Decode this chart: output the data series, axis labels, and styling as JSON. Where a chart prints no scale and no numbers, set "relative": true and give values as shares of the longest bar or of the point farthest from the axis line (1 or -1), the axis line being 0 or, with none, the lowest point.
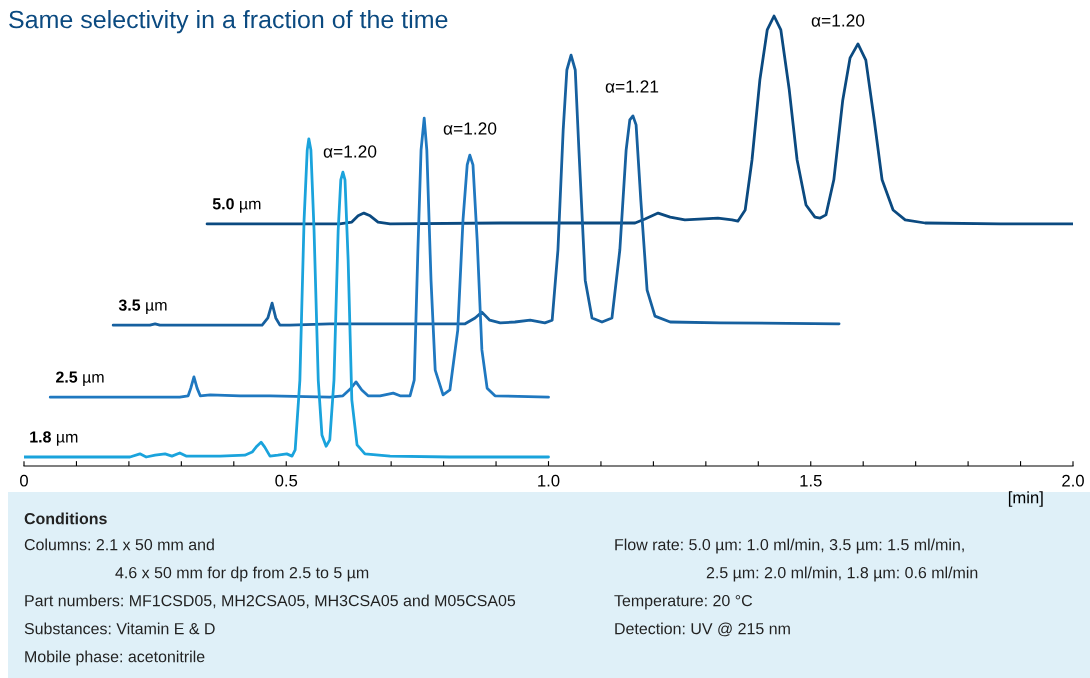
{
  "chart_data": {
    "type": "line",
    "title": "Same selectivity in a fraction of the time",
    "xlabel": "[min]",
    "relative": true,
    "line_style": "solid",
    "xlim": [
      0,
      2.0
    ],
    "xticks": [
      0,
      {
        "value": 0.1,
        "label": null
      },
      {
        "value": 0.2,
        "label": null
      },
      {
        "value": 0.3,
        "label": null
      },
      {
        "value": 0.4,
        "label": null
      },
      0.5,
      {
        "value": 0.6,
        "label": null
      },
      {
        "value": 0.7,
        "label": null
      },
      {
        "value": 0.8,
        "label": null
      },
      {
        "value": 0.9,
        "label": null
      },
      {
        "value": 1,
        "label": "1.0"
      },
      {
        "value": 1.1,
        "label": null
      },
      {
        "value": 1.2,
        "label": null
      },
      {
        "value": 1.3,
        "label": null
      },
      {
        "value": 1.4,
        "label": null
      },
      1.5,
      {
        "value": 1.6,
        "label": null
      },
      {
        "value": 1.7,
        "label": null
      },
      {
        "value": 1.8,
        "label": null
      },
      {
        "value": 1.9,
        "label": null
      },
      {
        "value": 2,
        "label": "2.0"
      }
    ],
    "series": [
      {
        "name": "5.0 µm",
        "color": "#0b4a80",
        "x": [
          0.349,
          0.602,
          0.625,
          0.637,
          0.648,
          0.66,
          0.675,
          0.698,
          0.908,
          1.136,
          1.165,
          1.184,
          1.209,
          1.232,
          1.26,
          1.323,
          1.35,
          1.361,
          1.375,
          1.388,
          1.403,
          1.417,
          1.43,
          1.443,
          1.459,
          1.474,
          1.491,
          1.508,
          1.518,
          1.529,
          1.544,
          1.561,
          1.575,
          1.59,
          1.605,
          1.621,
          1.636,
          1.657,
          1.68,
          1.718,
          1.861,
          2.0
        ],
        "values": [
          0.538,
          0.538,
          0.542,
          0.556,
          0.562,
          0.556,
          0.542,
          0.538,
          0.54,
          0.54,
          0.54,
          0.549,
          0.562,
          0.553,
          0.547,
          0.551,
          0.547,
          0.544,
          0.569,
          0.68,
          0.858,
          0.969,
          1.0,
          0.969,
          0.836,
          0.68,
          0.58,
          0.553,
          0.551,
          0.558,
          0.636,
          0.813,
          0.907,
          0.938,
          0.902,
          0.769,
          0.636,
          0.569,
          0.547,
          0.54,
          0.538,
          0.538
        ]
      },
      {
        "name": "3.5 µm",
        "color": "#16609f",
        "x": [
          0.17,
          0.24,
          0.25,
          0.259,
          0.454,
          0.465,
          0.473,
          0.48,
          0.488,
          0.507,
          0.583,
          0.812,
          0.841,
          0.86,
          0.873,
          0.888,
          0.908,
          0.936,
          0.965,
          0.993,
          1.007,
          1.018,
          1.028,
          1.035,
          1.043,
          1.051,
          1.058,
          1.07,
          1.083,
          1.102,
          1.121,
          1.136,
          1.148,
          1.155,
          1.161,
          1.167,
          1.176,
          1.188,
          1.203,
          1.232,
          1.327,
          1.554
        ],
        "values": [
          0.313,
          0.313,
          0.316,
          0.313,
          0.313,
          0.329,
          0.362,
          0.329,
          0.313,
          0.313,
          0.316,
          0.316,
          0.316,
          0.329,
          0.342,
          0.324,
          0.318,
          0.32,
          0.324,
          0.318,
          0.324,
          0.48,
          0.747,
          0.88,
          0.913,
          0.88,
          0.702,
          0.413,
          0.329,
          0.32,
          0.329,
          0.48,
          0.702,
          0.769,
          0.778,
          0.758,
          0.591,
          0.391,
          0.333,
          0.32,
          0.318,
          0.316
        ]
      },
      {
        "name": "2.5 µm",
        "color": "#1f78c0",
        "x": [
          0.05,
          0.297,
          0.313,
          0.318,
          0.324,
          0.33,
          0.336,
          0.355,
          0.412,
          0.469,
          0.583,
          0.608,
          0.622,
          0.633,
          0.644,
          0.656,
          0.679,
          0.704,
          0.717,
          0.736,
          0.744,
          0.751,
          0.757,
          0.763,
          0.768,
          0.776,
          0.784,
          0.799,
          0.812,
          0.827,
          0.837,
          0.845,
          0.85,
          0.856,
          0.864,
          0.873,
          0.883,
          0.898,
          1.0
        ],
        "values": [
          0.153,
          0.153,
          0.156,
          0.173,
          0.198,
          0.173,
          0.156,
          0.158,
          0.156,
          0.156,
          0.153,
          0.156,
          0.171,
          0.187,
          0.169,
          0.156,
          0.156,
          0.162,
          0.156,
          0.156,
          0.191,
          0.48,
          0.702,
          0.773,
          0.702,
          0.413,
          0.213,
          0.158,
          0.169,
          0.302,
          0.547,
          0.669,
          0.691,
          0.669,
          0.502,
          0.258,
          0.173,
          0.156,
          0.153
        ]
      },
      {
        "name": "1.8 µm",
        "color": "#1aa3dc",
        "x": [
          0,
          0.202,
          0.221,
          0.233,
          0.25,
          0.269,
          0.282,
          0.297,
          0.309,
          0.374,
          0.421,
          0.435,
          0.444,
          0.452,
          0.459,
          0.469,
          0.484,
          0.501,
          0.511,
          0.517,
          0.526,
          0.534,
          0.54,
          0.543,
          0.547,
          0.553,
          0.561,
          0.568,
          0.576,
          0.583,
          0.591,
          0.599,
          0.604,
          0.608,
          0.612,
          0.618,
          0.625,
          0.635,
          0.65,
          0.698,
          0.812,
          1.0
        ],
        "values": [
          0.02,
          0.02,
          0.027,
          0.02,
          0.024,
          0.027,
          0.022,
          0.029,
          0.022,
          0.022,
          0.024,
          0.031,
          0.044,
          0.053,
          0.042,
          0.022,
          0.024,
          0.027,
          0.022,
          0.036,
          0.191,
          0.547,
          0.702,
          0.727,
          0.702,
          0.524,
          0.191,
          0.069,
          0.044,
          0.058,
          0.191,
          0.524,
          0.636,
          0.653,
          0.636,
          0.458,
          0.147,
          0.047,
          0.027,
          0.022,
          0.02,
          0.02
        ]
      }
    ],
    "annotations": [
      "α=1.20",
      "α=1.20",
      "α=1.21",
      "α=1.20",
      "Conditions",
      "Columns: 2.1 x 50 mm and",
      "4.6 x 50 mm for dp from 2.5 to 5 µm",
      "Part numbers: MF1CSD05, MH2CSA05, MH3CSA05 and M05CSA05",
      "Substances: Vitamin E & D",
      "Mobile phase: acetonitrile",
      "Flow rate: 5.0 µm: 1.0 ml/min, 3.5 µm: 1.5 ml/min,",
      "2.5 µm: 2.0 ml/min, 1.8 µm: 0.6 ml/min",
      "Temperature: 20 °C",
      "Detection: UV @ 215 nm"
    ]
  }
}
